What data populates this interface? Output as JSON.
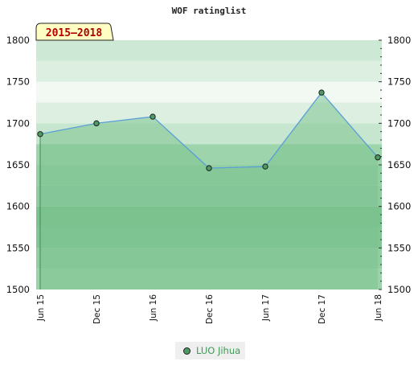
{
  "chart_data": {
    "type": "area",
    "title": "WOF ratinglist",
    "badge": "2015–2018",
    "categories": [
      "Jun 15",
      "Dec 15",
      "Jun 16",
      "Dec 16",
      "Jun 17",
      "Dec 17",
      "Jun 18"
    ],
    "series": [
      {
        "name": "LUO Jihua",
        "values": [
          1687,
          1700,
          1708,
          1646,
          1648,
          1737,
          1659
        ]
      }
    ],
    "y_ticks": [
      1500,
      1550,
      1600,
      1650,
      1700,
      1750,
      1800
    ],
    "ylim": [
      1500,
      1800
    ],
    "xlabel": "",
    "ylabel": "",
    "grid": true,
    "legend_position": "bottom",
    "colors": {
      "fill": "#7cc28f",
      "line": "#5b9fd6",
      "marker": "#4d9a62"
    }
  }
}
